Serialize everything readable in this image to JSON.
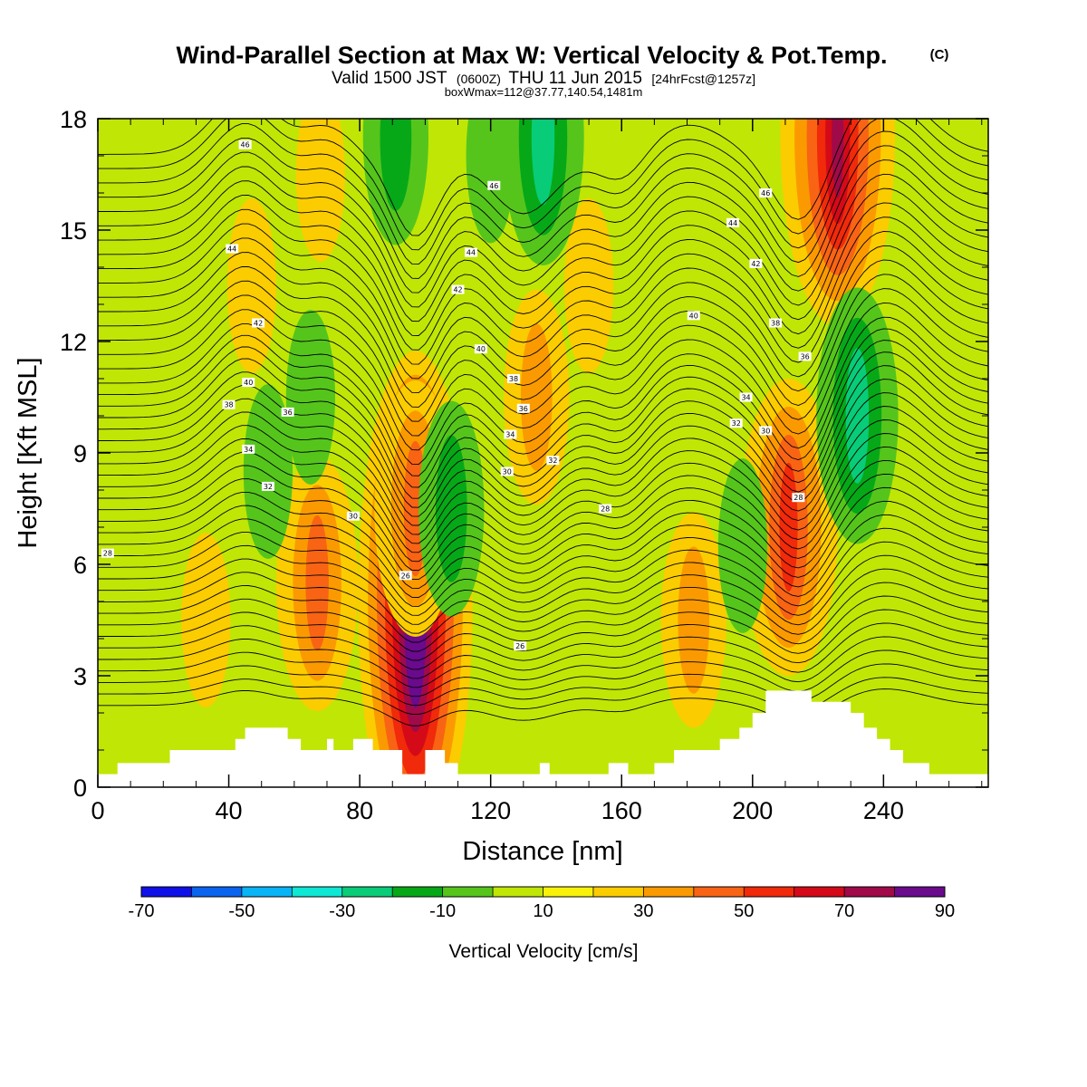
{
  "header": {
    "title": "Wind-Parallel Section at Max W: Vertical Velocity & Pot.Temp.",
    "copyright": "(C)",
    "valid_prefix": "Valid 1500 JST",
    "valid_utc": "(0600Z)",
    "valid_date": "THU 11 Jun 2015",
    "forecast": "[24hrFcst@1257z]",
    "boxw": "boxWmax=112@37.77,140.54,1481m"
  },
  "colorbar": {
    "label": "Vertical Velocity [cm/s]",
    "ticks": [
      "-70",
      "-50",
      "-30",
      "-10",
      "10",
      "30",
      "50",
      "70",
      "90"
    ],
    "colors": [
      "#1010e8",
      "#0a64f0",
      "#08b4f5",
      "#0ee8d4",
      "#08cc78",
      "#06a818",
      "#55c51c",
      "#c0e606",
      "#f8f20a",
      "#fbcc00",
      "#fb9a00",
      "#f86414",
      "#f02a0a",
      "#d40a18",
      "#a00a48",
      "#6a0a8c"
    ]
  },
  "chart_data": {
    "type": "contour",
    "title": "Wind-Parallel Section at Max W: Vertical Velocity & Pot.Temp.",
    "xlabel": "Distance [nm]",
    "ylabel": "Height [Kft MSL]",
    "xlim": [
      0,
      272
    ],
    "ylim": [
      0,
      18
    ],
    "x_ticks": [
      "0",
      "40",
      "80",
      "120",
      "160",
      "200",
      "240"
    ],
    "y_ticks": [
      "0",
      "3",
      "6",
      "9",
      "12",
      "15",
      "18"
    ],
    "filled_field": "Vertical Velocity [cm/s]",
    "contour_field": "Potential Temperature",
    "theta_labels": [
      {
        "text": "28",
        "x": 3,
        "y": 6.3
      },
      {
        "text": "26",
        "x": 94,
        "y": 5.7
      },
      {
        "text": "26",
        "x": 129,
        "y": 3.8
      },
      {
        "text": "28",
        "x": 155,
        "y": 7.5
      },
      {
        "text": "28",
        "x": 214,
        "y": 7.8
      },
      {
        "text": "30",
        "x": 78,
        "y": 7.3
      },
      {
        "text": "30",
        "x": 125,
        "y": 8.5
      },
      {
        "text": "30",
        "x": 204,
        "y": 9.6
      },
      {
        "text": "32",
        "x": 52,
        "y": 8.1
      },
      {
        "text": "32",
        "x": 139,
        "y": 8.8
      },
      {
        "text": "32",
        "x": 195,
        "y": 9.8
      },
      {
        "text": "34",
        "x": 46,
        "y": 9.1
      },
      {
        "text": "34",
        "x": 126,
        "y": 9.5
      },
      {
        "text": "34",
        "x": 198,
        "y": 10.5
      },
      {
        "text": "36",
        "x": 58,
        "y": 10.1
      },
      {
        "text": "36",
        "x": 130,
        "y": 10.2
      },
      {
        "text": "36",
        "x": 216,
        "y": 11.6
      },
      {
        "text": "38",
        "x": 40,
        "y": 10.3
      },
      {
        "text": "38",
        "x": 127,
        "y": 11.0
      },
      {
        "text": "38",
        "x": 207,
        "y": 12.5
      },
      {
        "text": "40",
        "x": 46,
        "y": 10.9
      },
      {
        "text": "40",
        "x": 117,
        "y": 11.8
      },
      {
        "text": "40",
        "x": 182,
        "y": 12.7
      },
      {
        "text": "42",
        "x": 49,
        "y": 12.5
      },
      {
        "text": "42",
        "x": 110,
        "y": 13.4
      },
      {
        "text": "42",
        "x": 201,
        "y": 14.1
      },
      {
        "text": "44",
        "x": 41,
        "y": 14.5
      },
      {
        "text": "44",
        "x": 114,
        "y": 14.4
      },
      {
        "text": "44",
        "x": 194,
        "y": 15.2
      },
      {
        "text": "46",
        "x": 45,
        "y": 17.3
      },
      {
        "text": "46",
        "x": 121,
        "y": 16.2
      },
      {
        "text": "46",
        "x": 204,
        "y": 16.0
      }
    ],
    "terrain": [
      [
        0,
        0.35
      ],
      [
        6,
        0.35
      ],
      [
        6,
        0.65
      ],
      [
        22,
        0.65
      ],
      [
        22,
        1.0
      ],
      [
        42,
        1.0
      ],
      [
        42,
        1.3
      ],
      [
        45,
        1.3
      ],
      [
        45,
        1.6
      ],
      [
        58,
        1.6
      ],
      [
        58,
        1.3
      ],
      [
        62,
        1.3
      ],
      [
        62,
        1.0
      ],
      [
        70,
        1.0
      ],
      [
        70,
        1.3
      ],
      [
        72,
        1.3
      ],
      [
        72,
        1.0
      ],
      [
        78,
        1.0
      ],
      [
        78,
        1.3
      ],
      [
        84,
        1.3
      ],
      [
        84,
        1.0
      ],
      [
        93,
        1.0
      ],
      [
        93,
        0.35
      ],
      [
        100,
        0.35
      ],
      [
        100,
        1.0
      ],
      [
        106,
        1.0
      ],
      [
        106,
        0.65
      ],
      [
        110,
        0.65
      ],
      [
        110,
        0.35
      ],
      [
        135,
        0.35
      ],
      [
        135,
        0.65
      ],
      [
        138,
        0.65
      ],
      [
        138,
        0.35
      ],
      [
        156,
        0.35
      ],
      [
        156,
        0.65
      ],
      [
        162,
        0.65
      ],
      [
        162,
        0.35
      ],
      [
        170,
        0.35
      ],
      [
        170,
        0.65
      ],
      [
        176,
        0.65
      ],
      [
        176,
        1.0
      ],
      [
        190,
        1.0
      ],
      [
        190,
        1.3
      ],
      [
        196,
        1.3
      ],
      [
        196,
        1.6
      ],
      [
        200,
        1.6
      ],
      [
        200,
        2.0
      ],
      [
        204,
        2.0
      ],
      [
        204,
        2.6
      ],
      [
        210,
        2.6
      ],
      [
        210,
        2.6
      ],
      [
        218,
        2.6
      ],
      [
        218,
        2.3
      ],
      [
        230,
        2.3
      ],
      [
        230,
        2.0
      ],
      [
        234,
        2.0
      ],
      [
        234,
        1.6
      ],
      [
        238,
        1.6
      ],
      [
        238,
        1.3
      ],
      [
        242,
        1.3
      ],
      [
        242,
        1.0
      ],
      [
        246,
        1.0
      ],
      [
        246,
        0.65
      ],
      [
        254,
        0.65
      ],
      [
        254,
        0.35
      ],
      [
        272,
        0.35
      ]
    ],
    "w_features": [
      {
        "x": 97,
        "y": 5.0,
        "w": 95
      },
      {
        "x": 97,
        "y": 7.5,
        "w": 40
      },
      {
        "x": 67,
        "y": 5.5,
        "w": 35
      },
      {
        "x": 47,
        "y": 13.5,
        "w": 20
      },
      {
        "x": 33,
        "y": 4.5,
        "w": 15
      },
      {
        "x": 68,
        "y": 16.5,
        "w": 20
      },
      {
        "x": 134,
        "y": 10.5,
        "w": 30
      },
      {
        "x": 150,
        "y": 13.5,
        "w": 15
      },
      {
        "x": 182,
        "y": 4.5,
        "w": 25
      },
      {
        "x": 211,
        "y": 7.0,
        "w": 45
      },
      {
        "x": 226,
        "y": 17.5,
        "w": 65
      },
      {
        "x": 108,
        "y": 7.5,
        "w": -30
      },
      {
        "x": 120,
        "y": 17.0,
        "w": -15
      },
      {
        "x": 136,
        "y": 17.5,
        "w": -35
      },
      {
        "x": 91,
        "y": 17.5,
        "w": -25
      },
      {
        "x": 232,
        "y": 10.0,
        "w": -40
      },
      {
        "x": 178,
        "y": 15.5,
        "w": -12
      },
      {
        "x": 197,
        "y": 6.5,
        "w": -18
      },
      {
        "x": 52,
        "y": 8.5,
        "w": -15
      },
      {
        "x": 65,
        "y": 10.5,
        "w": -15
      },
      {
        "x": 145,
        "y": 6.0,
        "w": -12
      },
      {
        "x": 265,
        "y": 9.0,
        "w": -10
      }
    ]
  }
}
